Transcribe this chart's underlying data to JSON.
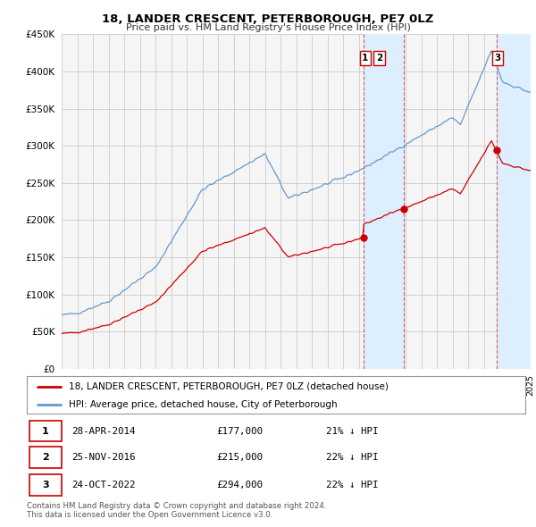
{
  "title": "18, LANDER CRESCENT, PETERBOROUGH, PE7 0LZ",
  "subtitle": "Price paid vs. HM Land Registry's House Price Index (HPI)",
  "hpi_color": "#6699cc",
  "house_color": "#cc0000",
  "shade_color": "#ddeeff",
  "grid_color": "#cccccc",
  "bg_color": "#ffffff",
  "plot_bg_color": "#f5f5f5",
  "ylim": [
    0,
    450000
  ],
  "xlim": [
    1995,
    2025
  ],
  "ytick_values": [
    0,
    50000,
    100000,
    150000,
    200000,
    250000,
    300000,
    350000,
    400000,
    450000
  ],
  "ytick_labels": [
    "£0",
    "£50K",
    "£100K",
    "£150K",
    "£200K",
    "£250K",
    "£300K",
    "£350K",
    "£400K",
    "£450K"
  ],
  "house_sale_years": [
    2014.32,
    2016.9,
    2022.8
  ],
  "house_sale_prices": [
    177000,
    215000,
    294000
  ],
  "house_sale_labels": [
    "1",
    "2",
    "3"
  ],
  "shade_regions": [
    {
      "x_start": 2014.32,
      "x_end": 2016.9
    },
    {
      "x_start": 2022.8,
      "x_end": 2025.0
    }
  ],
  "legend_label_house": "18, LANDER CRESCENT, PETERBOROUGH, PE7 0LZ (detached house)",
  "legend_label_hpi": "HPI: Average price, detached house, City of Peterborough",
  "table_data": [
    {
      "num": "1",
      "date": "28-APR-2014",
      "price": "£177,000",
      "hpi_note": "21% ↓ HPI"
    },
    {
      "num": "2",
      "date": "25-NOV-2016",
      "price": "£215,000",
      "hpi_note": "22% ↓ HPI"
    },
    {
      "num": "3",
      "date": "24-OCT-2022",
      "price": "£294,000",
      "hpi_note": "22% ↓ HPI"
    }
  ],
  "footnote": "Contains HM Land Registry data © Crown copyright and database right 2024.\nThis data is licensed under the Open Government Licence v3.0."
}
